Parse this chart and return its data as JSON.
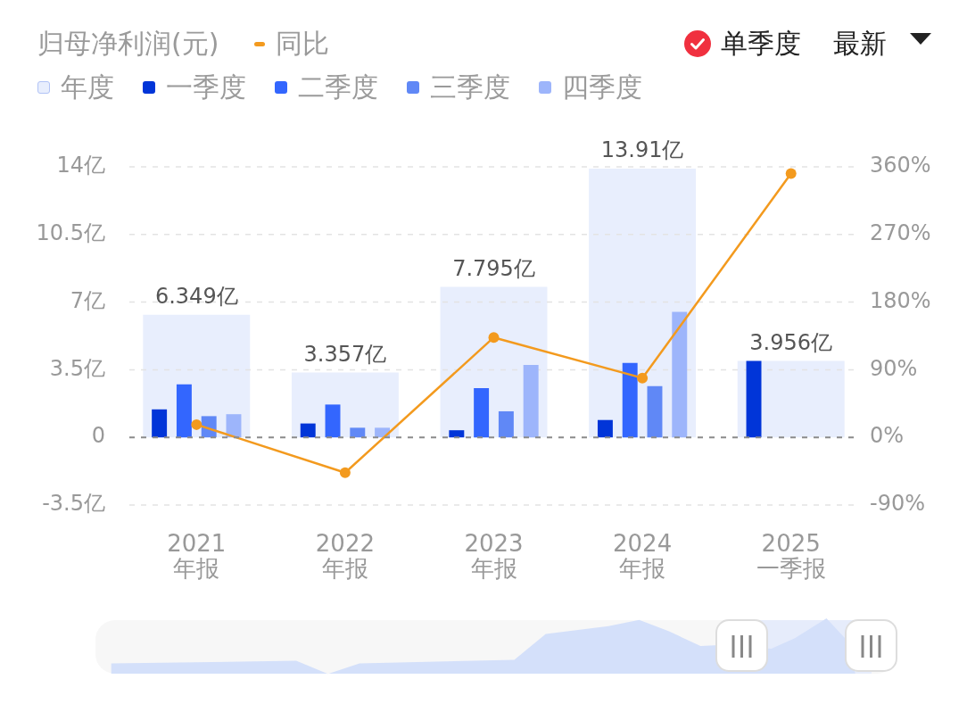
{
  "chart_data": {
    "type": "bar",
    "title": "归母净利润(元)",
    "categories": [
      "2021\n年报",
      "2022\n年报",
      "2023\n年报",
      "2024\n年报",
      "2025\n一季报"
    ],
    "series": [
      {
        "name": "年度",
        "color": "#e8eefd",
        "values": [
          6.349,
          3.357,
          7.795,
          13.91,
          3.956
        ],
        "value_labels": [
          "6.349亿",
          "3.357亿",
          "7.795亿",
          "13.91亿",
          "3.956亿"
        ]
      },
      {
        "name": "一季度",
        "color": "#0135d8",
        "values": [
          1.45,
          0.72,
          0.37,
          0.9,
          3.96
        ]
      },
      {
        "name": "二季度",
        "color": "#3366fe",
        "values": [
          2.75,
          1.7,
          2.55,
          3.85,
          null
        ]
      },
      {
        "name": "三季度",
        "color": "#6088f6",
        "values": [
          1.1,
          0.5,
          1.35,
          2.65,
          null
        ]
      },
      {
        "name": "四季度",
        "color": "#9db5fb",
        "values": [
          1.2,
          0.5,
          3.75,
          6.5,
          null
        ]
      },
      {
        "name": "同比",
        "type": "line",
        "axis": "y2",
        "color": "#f39a1e",
        "values": [
          17,
          -47,
          133,
          79,
          351
        ]
      }
    ],
    "ylim": [
      -3.5,
      14
    ],
    "yticks": [
      {
        "value": -3.5,
        "label": "-3.5亿"
      },
      0,
      {
        "value": 3.5,
        "label": "3.5亿"
      },
      {
        "value": 7,
        "label": "7亿"
      },
      {
        "value": 10.5,
        "label": "10.5亿"
      },
      {
        "value": 14,
        "label": "14亿"
      }
    ],
    "y2lim": [
      -90,
      360
    ],
    "y2ticks": [
      {
        "value": -90,
        "label": "-90%"
      },
      {
        "value": 0,
        "label": "0%"
      },
      {
        "value": 90,
        "label": "90%"
      },
      {
        "value": 180,
        "label": "180%"
      },
      {
        "value": 270,
        "label": "270%"
      },
      {
        "value": 360,
        "label": "360%"
      }
    ],
    "ref_lines": [
      {
        "axis": "y",
        "value": 0,
        "color": "#8c8c8c",
        "line_style": "dashed"
      }
    ],
    "grid": "y",
    "legend": "top left",
    "marker": "circle",
    "line_style": "solid",
    "annotations": [
      "单季度",
      "最新"
    ]
  }
}
